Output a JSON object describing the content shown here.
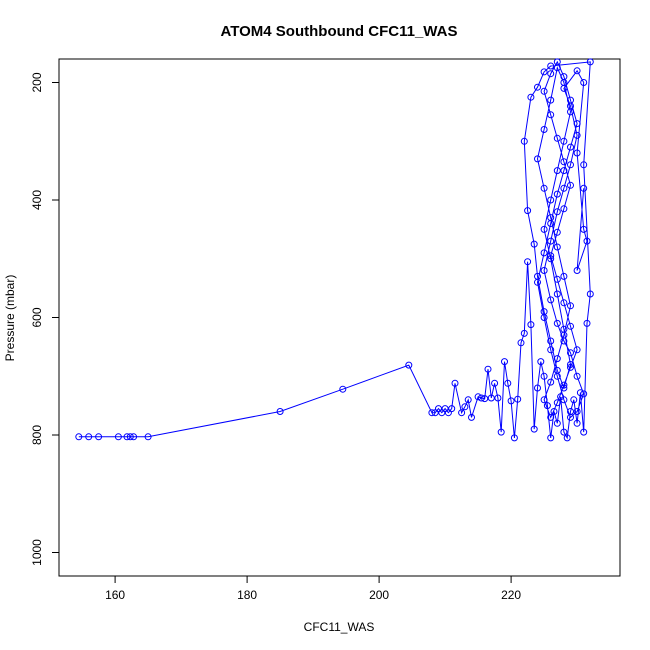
{
  "chart_data": {
    "type": "scatter",
    "title": "ATOM4 Southbound CFC11_WAS",
    "xlabel": "CFC11_WAS",
    "ylabel": "Pressure (mbar)",
    "xlim": [
      151.5,
      236.5
    ],
    "ylim": [
      1040,
      160
    ],
    "y_reversed": true,
    "xticks": [
      160,
      180,
      200,
      220
    ],
    "yticks": [
      200,
      400,
      600,
      800,
      1000
    ],
    "grid": false,
    "legend": "none",
    "series_color": "#0000ff",
    "marker": "open-circle",
    "connect_points": true,
    "points": [
      [
        154.5,
        803
      ],
      [
        156,
        803
      ],
      [
        157.5,
        803
      ],
      [
        160.5,
        803
      ],
      [
        161.8,
        803
      ],
      [
        162.3,
        803
      ],
      [
        162.8,
        803
      ],
      [
        165,
        803
      ],
      [
        185,
        760
      ],
      [
        194.5,
        722
      ],
      [
        204.5,
        681
      ],
      [
        208,
        762
      ],
      [
        208.5,
        762
      ],
      [
        209,
        755
      ],
      [
        209.5,
        762
      ],
      [
        210,
        755
      ],
      [
        210.5,
        762
      ],
      [
        211,
        755
      ],
      [
        211.5,
        712
      ],
      [
        212.5,
        762
      ],
      [
        213,
        752
      ],
      [
        213.5,
        740
      ],
      [
        214,
        770
      ],
      [
        215,
        735
      ],
      [
        215.5,
        737
      ],
      [
        216,
        738
      ],
      [
        216.5,
        688
      ],
      [
        217,
        737
      ],
      [
        217.5,
        712
      ],
      [
        218,
        737
      ],
      [
        218.5,
        795
      ],
      [
        219,
        675
      ],
      [
        219.5,
        712
      ],
      [
        220,
        742
      ],
      [
        220.5,
        805
      ],
      [
        221,
        739
      ],
      [
        221.5,
        643
      ],
      [
        222,
        627
      ],
      [
        222.5,
        505
      ],
      [
        223,
        612
      ],
      [
        223.5,
        790
      ],
      [
        224,
        720
      ],
      [
        224.5,
        675
      ],
      [
        225,
        700
      ],
      [
        225.5,
        750
      ],
      [
        226,
        805
      ],
      [
        226.5,
        760
      ],
      [
        227,
        780
      ],
      [
        227.5,
        735
      ],
      [
        228,
        795
      ],
      [
        228.5,
        805
      ],
      [
        229,
        760
      ],
      [
        229.5,
        740
      ],
      [
        230,
        780
      ],
      [
        230.5,
        728
      ],
      [
        231,
        795
      ],
      [
        231.5,
        610
      ],
      [
        232,
        560
      ],
      [
        231,
        340
      ],
      [
        232,
        165
      ],
      [
        226,
        172
      ],
      [
        225,
        182
      ],
      [
        224,
        208
      ],
      [
        223,
        225
      ],
      [
        222,
        300
      ],
      [
        222.5,
        418
      ],
      [
        223.5,
        475
      ],
      [
        224,
        530
      ],
      [
        225,
        590
      ],
      [
        226,
        640
      ],
      [
        227,
        690
      ],
      [
        228,
        720
      ],
      [
        229,
        680
      ],
      [
        228,
        620
      ],
      [
        227,
        560
      ],
      [
        226,
        500
      ],
      [
        225,
        450
      ],
      [
        226,
        400
      ],
      [
        227,
        350
      ],
      [
        228,
        300
      ],
      [
        229,
        250
      ],
      [
        228,
        200
      ],
      [
        227,
        175
      ],
      [
        226,
        230
      ],
      [
        225,
        280
      ],
      [
        224,
        330
      ],
      [
        225,
        380
      ],
      [
        226,
        430
      ],
      [
        227,
        480
      ],
      [
        228,
        530
      ],
      [
        229,
        580
      ],
      [
        228,
        630
      ],
      [
        227,
        670
      ],
      [
        226,
        710
      ],
      [
        225,
        740
      ],
      [
        226,
        770
      ],
      [
        227,
        745
      ],
      [
        228,
        715
      ],
      [
        229,
        685
      ],
      [
        230,
        655
      ],
      [
        229,
        615
      ],
      [
        228,
        575
      ],
      [
        227,
        535
      ],
      [
        226,
        495
      ],
      [
        227,
        455
      ],
      [
        228,
        415
      ],
      [
        229,
        375
      ],
      [
        228,
        335
      ],
      [
        227,
        295
      ],
      [
        226,
        255
      ],
      [
        225,
        215
      ],
      [
        226,
        185
      ],
      [
        227,
        165
      ],
      [
        228,
        190
      ],
      [
        229,
        230
      ],
      [
        230,
        270
      ],
      [
        229,
        310
      ],
      [
        228,
        350
      ],
      [
        227,
        390
      ],
      [
        226,
        440
      ],
      [
        225,
        490
      ],
      [
        224,
        540
      ],
      [
        225,
        600
      ],
      [
        226,
        655
      ],
      [
        227,
        700
      ],
      [
        228,
        740
      ],
      [
        229,
        770
      ],
      [
        230,
        760
      ],
      [
        231,
        730
      ],
      [
        230,
        700
      ],
      [
        229,
        660
      ],
      [
        228,
        640
      ],
      [
        227,
        610
      ],
      [
        226,
        570
      ],
      [
        225,
        520
      ],
      [
        226,
        470
      ],
      [
        227,
        420
      ],
      [
        228,
        380
      ],
      [
        229,
        340
      ],
      [
        230,
        290
      ],
      [
        229,
        240
      ],
      [
        228,
        210
      ],
      [
        230,
        180
      ],
      [
        231,
        200
      ],
      [
        230,
        320
      ],
      [
        231,
        450
      ],
      [
        231.5,
        470
      ],
      [
        230,
        520
      ],
      [
        231,
        380
      ]
    ]
  }
}
